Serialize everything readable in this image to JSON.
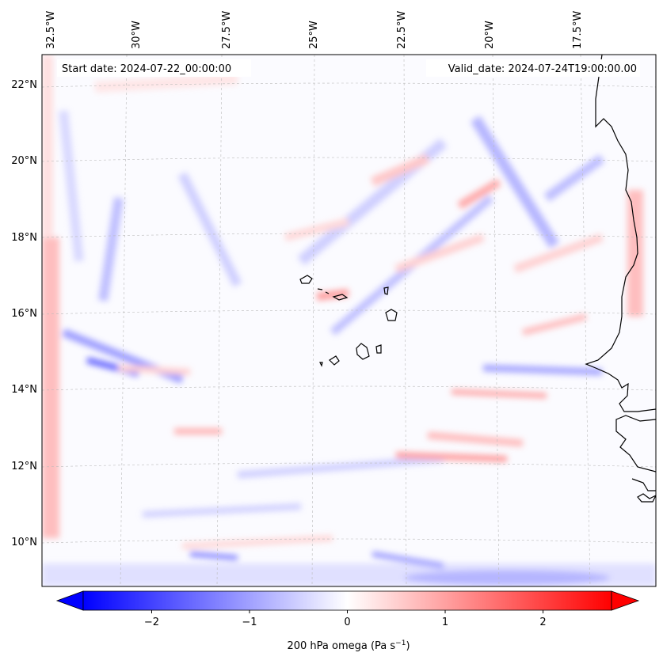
{
  "map": {
    "start_date": "Start date: 2024-07-22_00:00:00",
    "valid_date": "Valid_date: 2024-07-24T19:00:00.00",
    "lon_labels": [
      "32.5°W",
      "30°W",
      "27.5°W",
      "25°W",
      "22.5°W",
      "20°W",
      "17.5°W"
    ],
    "lat_labels": [
      "22°N",
      "20°N",
      "18°N",
      "16°N",
      "14°N",
      "12°N",
      "10°N"
    ],
    "gridlines": "dashed"
  },
  "colorbar": {
    "ticks": [
      "−2",
      "−1",
      "0",
      "1",
      "2"
    ],
    "tick_values": [
      -2,
      -1,
      0,
      1,
      2
    ],
    "range": [
      -2.7,
      2.7
    ],
    "label_main": "200 hPa omega (Pa s",
    "label_sup": "−1",
    "label_end": ")",
    "colors": {
      "negative": "#0000ff",
      "zero": "#ffffff",
      "positive": "#ff0000"
    },
    "extend": "both"
  },
  "colors": {
    "coastline": "#000000",
    "grid": "#bbbbbb"
  }
}
